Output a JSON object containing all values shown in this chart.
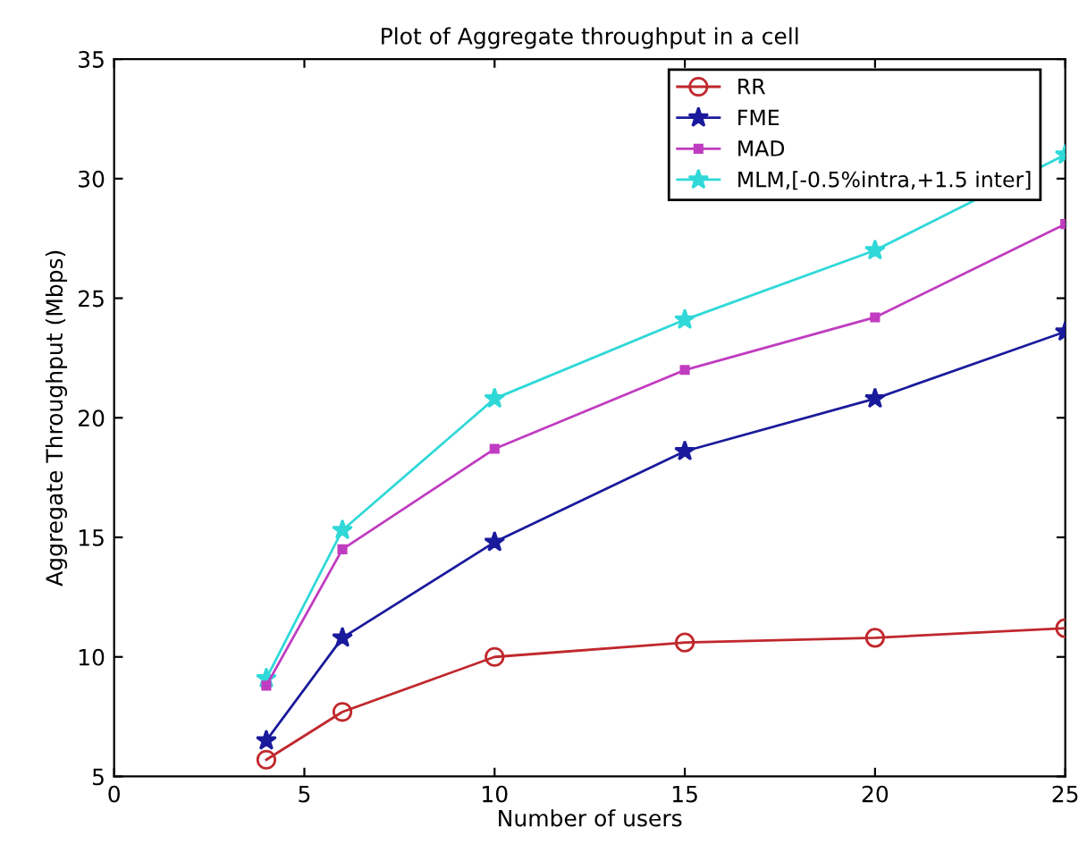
{
  "chart_data": {
    "type": "line",
    "title": "Plot of Aggregate throughput in a cell",
    "xlabel": "Number of users",
    "ylabel": "Aggregate Throughput (Mbps)",
    "x": [
      4,
      6,
      10,
      15,
      20,
      25
    ],
    "series": [
      {
        "name": "RR",
        "color": "#c0282d",
        "marker": "circle",
        "values": [
          5.7,
          7.7,
          10.0,
          10.6,
          10.8,
          11.2
        ]
      },
      {
        "name": "FME",
        "color": "#1a1a9c",
        "marker": "star",
        "values": [
          6.5,
          10.8,
          14.8,
          18.6,
          20.8,
          23.6
        ]
      },
      {
        "name": "MAD",
        "color": "#c03cc0",
        "marker": "square",
        "values": [
          8.8,
          14.5,
          18.7,
          22.0,
          24.2,
          28.1
        ]
      },
      {
        "name": "MLM,[-0.5%intra,+1.5 inter]",
        "color": "#30d8d8",
        "marker": "star",
        "values": [
          9.1,
          15.3,
          20.8,
          24.1,
          27.0,
          31.0
        ]
      }
    ],
    "xlim": [
      0,
      25
    ],
    "xticks": [
      0,
      5,
      10,
      15,
      20,
      25
    ],
    "ylim": [
      5,
      35
    ],
    "yticks": [
      5,
      10,
      15,
      20,
      25,
      30,
      35
    ],
    "legend": "top right",
    "grid": false,
    "line_style": "solid"
  }
}
